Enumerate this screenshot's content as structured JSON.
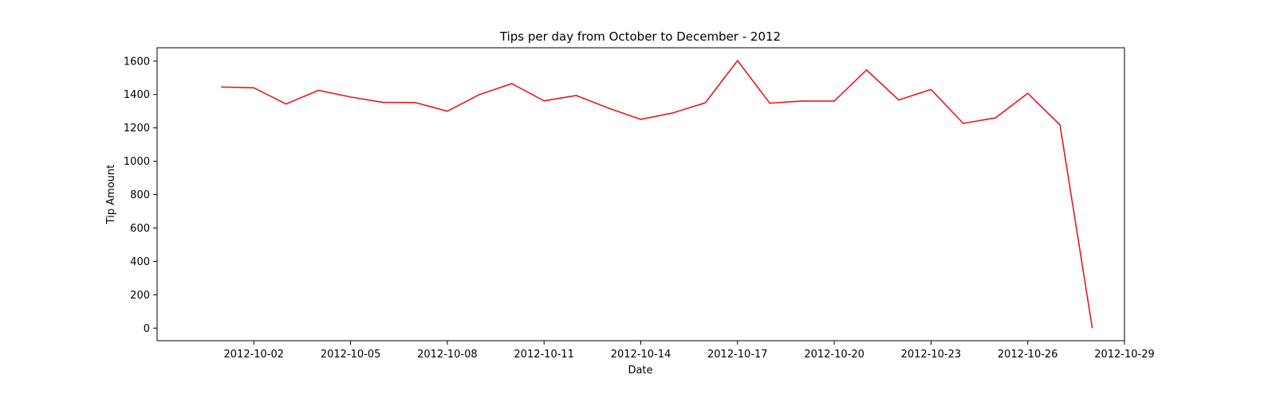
{
  "chart_data": {
    "type": "line",
    "title": "Tips per day from October to December - 2012",
    "xlabel": "Date",
    "ylabel": "Tip Amount",
    "x_tick_labels": [
      "2012-10-02",
      "2012-10-05",
      "2012-10-08",
      "2012-10-11",
      "2012-10-14",
      "2012-10-17",
      "2012-10-20",
      "2012-10-23",
      "2012-10-26",
      "2012-10-29"
    ],
    "y_ticks": [
      0,
      200,
      400,
      600,
      800,
      1000,
      1200,
      1400,
      1600
    ],
    "xlim": [
      "2012-09-29",
      "2012-10-29"
    ],
    "ylim": [
      -75,
      1680
    ],
    "grid": false,
    "series": [
      {
        "color": "#e8191f",
        "x": [
          "2012-10-01",
          "2012-10-02",
          "2012-10-03",
          "2012-10-04",
          "2012-10-05",
          "2012-10-06",
          "2012-10-07",
          "2012-10-08",
          "2012-10-09",
          "2012-10-10",
          "2012-10-11",
          "2012-10-12",
          "2012-10-13",
          "2012-10-14",
          "2012-10-15",
          "2012-10-16",
          "2012-10-17",
          "2012-10-18",
          "2012-10-19",
          "2012-10-20",
          "2012-10-21",
          "2012-10-22",
          "2012-10-23",
          "2012-10-24",
          "2012-10-25",
          "2012-10-26",
          "2012-10-27",
          "2012-10-28"
        ],
        "y": [
          1445,
          1440,
          1343,
          1425,
          1385,
          1353,
          1352,
          1300,
          1400,
          1465,
          1362,
          1394,
          1318,
          1251,
          1290,
          1350,
          1603,
          1348,
          1361,
          1361,
          1547,
          1367,
          1430,
          1227,
          1260,
          1407,
          1218,
          3
        ]
      }
    ]
  }
}
